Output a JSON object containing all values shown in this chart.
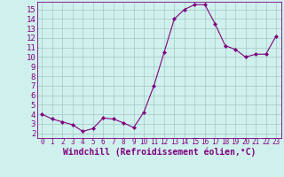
{
  "x": [
    0,
    1,
    2,
    3,
    4,
    5,
    6,
    7,
    8,
    9,
    10,
    11,
    12,
    13,
    14,
    15,
    16,
    17,
    18,
    19,
    20,
    21,
    22,
    23
  ],
  "y": [
    4.0,
    3.5,
    3.2,
    2.9,
    2.2,
    2.5,
    3.6,
    3.5,
    3.1,
    2.6,
    4.2,
    7.0,
    10.5,
    14.0,
    15.0,
    15.5,
    15.5,
    13.5,
    11.2,
    10.8,
    10.0,
    10.3,
    10.3,
    12.2
  ],
  "line_color": "#800080",
  "marker": "D",
  "marker_size": 2.0,
  "bg_color": "#cff0ec",
  "grid_color": "#a0c8c8",
  "xlabel": "Windchill (Refroidissement éolien,°C)",
  "ylabel": "",
  "xlim": [
    -0.5,
    23.5
  ],
  "ylim": [
    1.5,
    15.8
  ],
  "yticks": [
    2,
    3,
    4,
    5,
    6,
    7,
    8,
    9,
    10,
    11,
    12,
    13,
    14,
    15
  ],
  "xticks": [
    0,
    1,
    2,
    3,
    4,
    5,
    6,
    7,
    8,
    9,
    10,
    11,
    12,
    13,
    14,
    15,
    16,
    17,
    18,
    19,
    20,
    21,
    22,
    23
  ],
  "tick_color": "#800080",
  "label_color": "#800080",
  "spine_color": "#800080",
  "xlabel_fontsize": 7.0,
  "ytick_fontsize": 6.5,
  "xtick_fontsize": 5.5,
  "xlabel_bold": true
}
